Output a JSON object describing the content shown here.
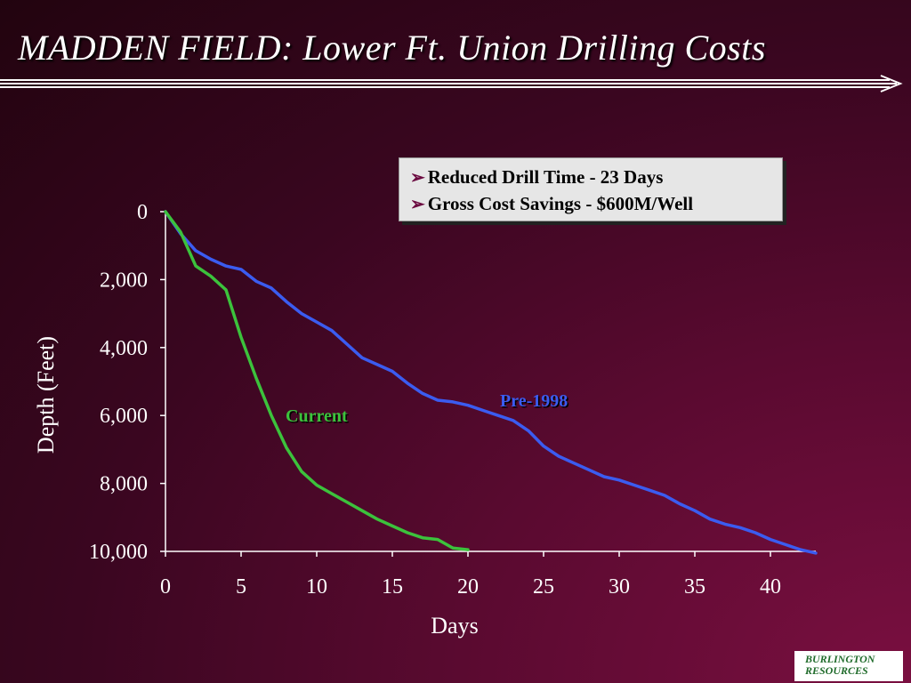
{
  "slide": {
    "title": "MADDEN FIELD: Lower Ft. Union Drilling Costs",
    "bullets": [
      "Reduced Drill Time  - 23 Days",
      "Gross Cost Savings  - $600M/Well"
    ],
    "logo": {
      "line1": "BURLINGTON",
      "line2": "RESOURCES"
    },
    "colors": {
      "accent": "#6b0a40",
      "pre1998": "#3b5cf0",
      "current": "#3cc23c",
      "text": "#ffffff"
    }
  },
  "chart_data": {
    "type": "line",
    "title": "",
    "xlabel": "Days",
    "ylabel": "Depth (Feet)",
    "xlim": [
      0,
      43
    ],
    "ylim": [
      0,
      10000
    ],
    "y_inverted": true,
    "x_ticks": [
      0,
      5,
      10,
      15,
      20,
      25,
      30,
      35,
      40
    ],
    "x_tick_labels": [
      "0",
      "5",
      "10",
      "15",
      "20",
      "25",
      "30",
      "35",
      "40"
    ],
    "y_ticks": [
      0,
      2000,
      4000,
      6000,
      8000,
      10000
    ],
    "y_tick_labels": [
      "0",
      "2,000",
      "4,000",
      "6,000",
      "8,000",
      "10,000"
    ],
    "series": [
      {
        "name": "Pre-1998",
        "color": "#3b5cf0",
        "x": [
          0,
          1,
          2,
          3,
          4,
          5,
          6,
          7,
          8,
          9,
          10,
          11,
          12,
          13,
          14,
          15,
          16,
          17,
          18,
          19,
          20,
          21,
          22,
          23,
          24,
          25,
          26,
          27,
          28,
          29,
          30,
          31,
          32,
          33,
          34,
          35,
          36,
          37,
          38,
          39,
          40,
          41,
          42,
          43
        ],
        "y": [
          0,
          650,
          1150,
          1400,
          1600,
          1700,
          2050,
          2250,
          2650,
          3000,
          3250,
          3500,
          3900,
          4300,
          4500,
          4700,
          5050,
          5350,
          5550,
          5600,
          5700,
          5850,
          6000,
          6150,
          6450,
          6900,
          7200,
          7400,
          7600,
          7800,
          7900,
          8050,
          8200,
          8350,
          8600,
          8800,
          9050,
          9200,
          9300,
          9450,
          9650,
          9800,
          9950,
          10050
        ]
      },
      {
        "name": "Current",
        "color": "#3cc23c",
        "x": [
          0,
          1,
          2,
          3,
          4,
          5,
          6,
          7,
          8,
          9,
          10,
          11,
          12,
          13,
          14,
          15,
          16,
          17,
          18,
          19,
          20
        ],
        "y": [
          0,
          600,
          1600,
          1900,
          2300,
          3700,
          4900,
          6000,
          6950,
          7650,
          8050,
          8300,
          8550,
          8800,
          9050,
          9250,
          9450,
          9600,
          9650,
          9900,
          9950
        ]
      }
    ]
  }
}
